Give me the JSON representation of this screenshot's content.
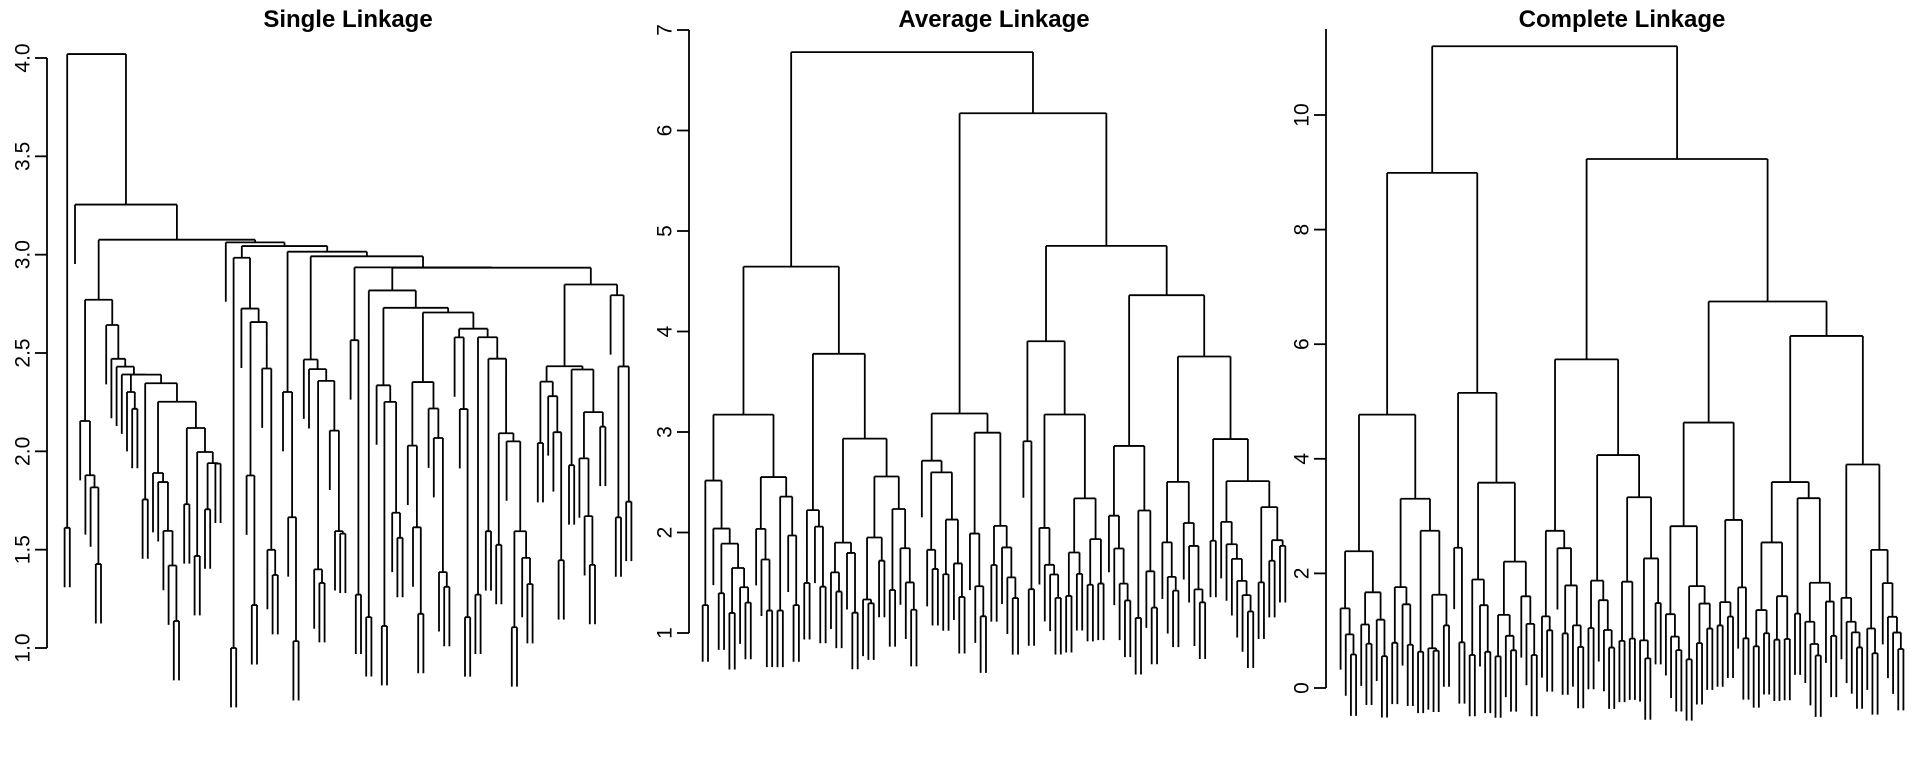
{
  "chart_data": {
    "type": "dendrogram",
    "subtype": "hierarchical-clustering-linkage-comparison",
    "n_leaves": 110,
    "leaf_labels_shown": false,
    "hang_fraction": 0.1,
    "line_color": "#000000",
    "text_color": "#000000",
    "background_color": "#ffffff",
    "legend": "none",
    "grid": "off",
    "panels": [
      {
        "title": "Single Linkage",
        "method": "single",
        "ytick_values": [
          1.0,
          1.5,
          2.0,
          2.5,
          3.0,
          3.5,
          4.0
        ],
        "ytick_labels": [
          "1.0",
          "1.5",
          "2.0",
          "2.5",
          "3.0",
          "3.5",
          "4.0"
        ],
        "merge_height_range": [
          1.0,
          4.02
        ],
        "root_height": 4.02,
        "axis_line_value_range": [
          1.0,
          4.0
        ],
        "ytick_label_rotation_deg": -90
      },
      {
        "title": "Average Linkage",
        "method": "average",
        "ytick_values": [
          1,
          2,
          3,
          4,
          5,
          6,
          7
        ],
        "ytick_labels": [
          "1",
          "2",
          "3",
          "4",
          "5",
          "6",
          "7"
        ],
        "merge_height_range": [
          1.15,
          6.78
        ],
        "root_height": 6.78,
        "axis_line_value_range": [
          1,
          7
        ],
        "ytick_label_rotation_deg": -90
      },
      {
        "title": "Complete Linkage",
        "method": "complete",
        "ytick_values": [
          0,
          2,
          4,
          6,
          8,
          10
        ],
        "ytick_labels": [
          "0",
          "2",
          "4",
          "6",
          "8",
          "10"
        ],
        "merge_height_range": [
          0.5,
          11.2
        ],
        "root_height": 11.2,
        "axis_line_value_range": [
          0,
          11.5
        ],
        "ytick_label_rotation_deg": -90
      }
    ]
  }
}
